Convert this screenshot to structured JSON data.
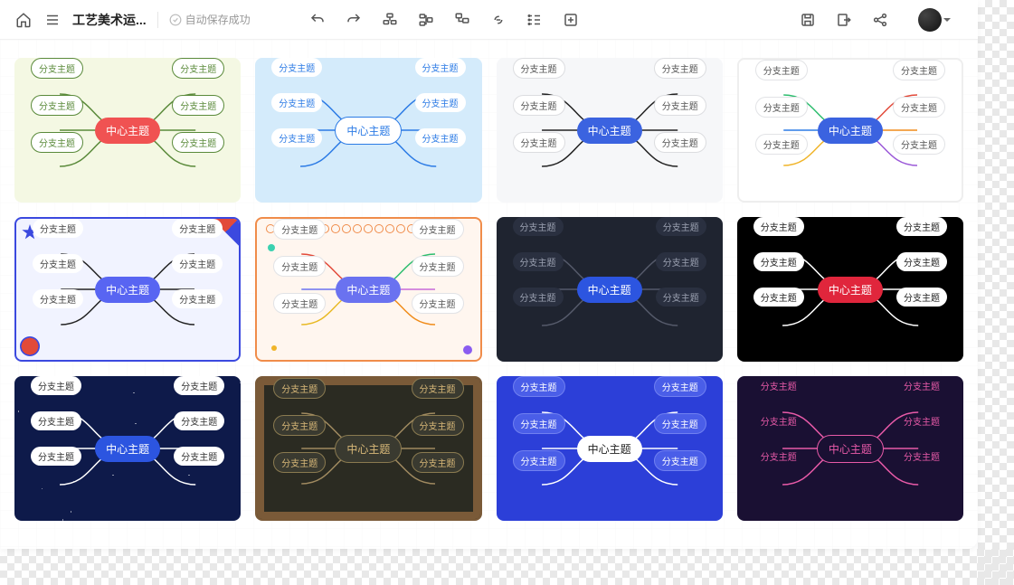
{
  "header": {
    "title": "工艺美术运...",
    "autosave": "自动保存成功"
  },
  "labels": {
    "center": "中心主题",
    "branch": "分支主题"
  },
  "themes": [
    {
      "bg": "#f4f8e3",
      "center_bg": "#f05252",
      "center_fg": "#ffffff",
      "branch_bg": "#ffffff",
      "branch_fg": "#5a8a3a",
      "branch_border": "#5a8a3a",
      "line_colors": [
        "#5a8a3a",
        "#5a8a3a",
        "#5a8a3a",
        "#5a8a3a",
        "#5a8a3a",
        "#5a8a3a"
      ]
    },
    {
      "bg": "#d4ebfb",
      "center_bg": "#ffffff",
      "center_fg": "#2c7be5",
      "center_border": "#2c7be5",
      "branch_bg": "#ffffff",
      "branch_fg": "#2c7be5",
      "branch_border": "transparent",
      "line_colors": [
        "#2c7be5",
        "#2c7be5",
        "#2c7be5",
        "#2c7be5",
        "#2c7be5",
        "#2c7be5"
      ]
    },
    {
      "bg": "#f6f7f9",
      "center_bg": "#3b63e0",
      "center_fg": "#ffffff",
      "branch_bg": "#ffffff",
      "branch_fg": "#555555",
      "branch_border": "#dcdde0",
      "line_colors": [
        "#222",
        "#222",
        "#222",
        "#222",
        "#222",
        "#222"
      ]
    },
    {
      "bg": "#ffffff",
      "card_border": "#eeeeee",
      "center_bg": "#3b63e0",
      "center_fg": "#ffffff",
      "branch_bg": "#ffffff",
      "branch_fg": "#555555",
      "branch_border": "#e2e3e6",
      "line_colors": [
        "#2dbd6e",
        "#2c7be5",
        "#f0b429",
        "#e24a3a",
        "#f08c1a",
        "#9b59d8"
      ]
    },
    {
      "bg": "#f1f3ff",
      "card_border": "#3b49df",
      "center_bg": "#5865f2",
      "center_fg": "#ffffff",
      "branch_bg": "#ffffff",
      "branch_fg": "#444444",
      "branch_border": "transparent",
      "line_colors": [
        "#222",
        "#222",
        "#222",
        "#222",
        "#222",
        "#222"
      ],
      "deco": "confetti"
    },
    {
      "bg": "#fff6ef",
      "card_border": "#f08c4a",
      "center_bg": "#6a72f0",
      "center_fg": "#ffffff",
      "branch_bg": "#ffffff",
      "branch_fg": "#555555",
      "branch_border": "#e2e3e6",
      "line_colors": [
        "#e24a3a",
        "#6a72f0",
        "#e8b923",
        "#2dbd6e",
        "#c96ad8",
        "#f08c1a"
      ],
      "deco": "circles"
    },
    {
      "bg": "#1f2430",
      "center_bg": "#2c55e0",
      "center_fg": "#ffffff",
      "branch_bg": "#2a3040",
      "branch_fg": "#9aa0b0",
      "branch_border": "transparent",
      "line_colors": [
        "#555a6a",
        "#555a6a",
        "#555a6a",
        "#555a6a",
        "#555a6a",
        "#555a6a"
      ]
    },
    {
      "bg": "#000000",
      "center_bg": "#e0263c",
      "center_fg": "#ffffff",
      "branch_bg": "#ffffff",
      "branch_fg": "#222222",
      "branch_border": "transparent",
      "line_colors": [
        "#ffffff",
        "#ffffff",
        "#ffffff",
        "#ffffff",
        "#ffffff",
        "#ffffff"
      ]
    },
    {
      "bg": "#0e1a4a",
      "center_bg": "#2c55e0",
      "center_fg": "#ffffff",
      "branch_bg": "#ffffff",
      "branch_fg": "#333333",
      "branch_border": "transparent",
      "line_colors": [
        "#ffffff",
        "#ffffff",
        "#ffffff",
        "#ffffff",
        "#ffffff",
        "#ffffff"
      ],
      "deco": "stars"
    },
    {
      "bg": "#2b2b22",
      "card_border": "#7a5a38",
      "center_bg": "#3a3a30",
      "center_fg": "#d8b878",
      "center_border": "#8a7a50",
      "branch_bg": "#3a3a30",
      "branch_fg": "#d8b878",
      "branch_border": "#8a7a50",
      "line_colors": [
        "#a08a60",
        "#a08a60",
        "#a08a60",
        "#a08a60",
        "#a08a60",
        "#a08a60"
      ],
      "deco": "chalk"
    },
    {
      "bg": "#2c3fd8",
      "center_bg": "#ffffff",
      "center_fg": "#222222",
      "branch_bg": "#4a5ee8",
      "branch_fg": "#ffffff",
      "branch_border": "#7080f0",
      "line_colors": [
        "#ffffff",
        "#ffffff",
        "#ffffff",
        "#ffffff",
        "#ffffff",
        "#ffffff"
      ]
    },
    {
      "bg": "#1a1033",
      "center_bg": "#1a1033",
      "center_fg": "#e85aa8",
      "center_border": "#e85aa8",
      "branch_bg": "transparent",
      "branch_fg": "#e85aa8",
      "branch_border": "transparent",
      "line_colors": [
        "#e85aa8",
        "#e85aa8",
        "#e85aa8",
        "#e85aa8",
        "#e85aa8",
        "#e85aa8"
      ]
    }
  ]
}
